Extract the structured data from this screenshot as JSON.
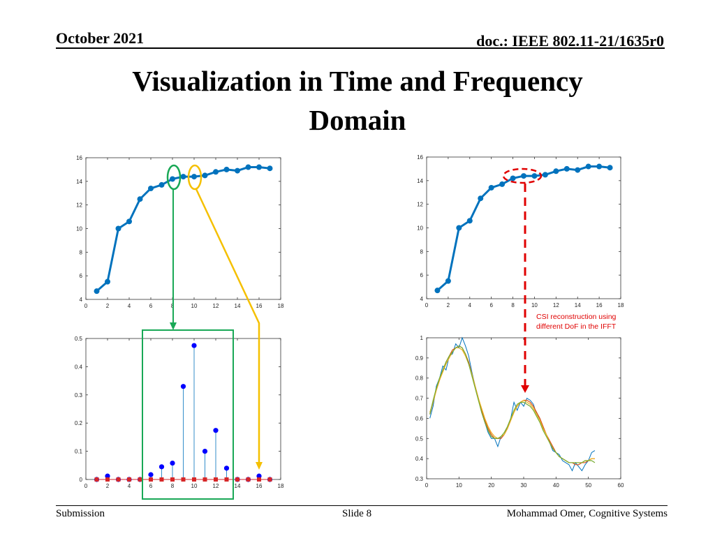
{
  "header": {
    "date": "October 2021",
    "doc": "doc.: IEEE 802.11-21/1635r0"
  },
  "title": {
    "line1": "Visualization in Time and Frequency",
    "line2": "Domain"
  },
  "annotation": {
    "line1": "CSI reconstruction using",
    "line2": "different DoF in the IFFT"
  },
  "footer": {
    "left": "Submission",
    "center": "Slide 8",
    "right": "Mohammad Omer, Cognitive Systems"
  },
  "colors": {
    "blue_line": "#0072BD",
    "marker_blue": "#0000FF",
    "marker_red": "#D62728",
    "green": "#19A856",
    "yellow": "#F5C000",
    "red_dash": "#E00000",
    "orange": "#D95319"
  },
  "chart_data": [
    {
      "type": "line",
      "panel": "top-left",
      "x": [
        1,
        2,
        3,
        4,
        5,
        6,
        7,
        8,
        9,
        10,
        11,
        12,
        13,
        14,
        15,
        16,
        17
      ],
      "series": [
        {
          "values": [
            4.7,
            5.5,
            10.0,
            10.6,
            12.5,
            13.4,
            13.7,
            14.2,
            14.4,
            14.4,
            14.5,
            14.8,
            15.0,
            14.9,
            15.2,
            15.2,
            15.1
          ]
        }
      ],
      "xlim": [
        0,
        18
      ],
      "ylim": [
        4,
        16
      ],
      "xticks": [
        0,
        2,
        4,
        6,
        8,
        10,
        12,
        14,
        16,
        18
      ],
      "yticks": [
        4,
        6,
        8,
        10,
        12,
        14,
        16
      ]
    },
    {
      "type": "line",
      "panel": "top-right",
      "x": [
        1,
        2,
        3,
        4,
        5,
        6,
        7,
        8,
        9,
        10,
        11,
        12,
        13,
        14,
        15,
        16,
        17
      ],
      "series": [
        {
          "values": [
            4.7,
            5.5,
            10.0,
            10.6,
            12.5,
            13.4,
            13.7,
            14.2,
            14.4,
            14.4,
            14.5,
            14.8,
            15.0,
            14.9,
            15.2,
            15.2,
            15.1
          ]
        }
      ],
      "xlim": [
        0,
        18
      ],
      "ylim": [
        4,
        16
      ],
      "xticks": [
        0,
        2,
        4,
        6,
        8,
        10,
        12,
        14,
        16,
        18
      ],
      "yticks": [
        4,
        6,
        8,
        10,
        12,
        14,
        16
      ]
    },
    {
      "type": "scatter",
      "panel": "bottom-left",
      "x": [
        1,
        2,
        3,
        4,
        5,
        6,
        7,
        8,
        9,
        10,
        11,
        12,
        13,
        14,
        15,
        16,
        17
      ],
      "series": [
        {
          "values": [
            0.0,
            0.012,
            0.0,
            0.0,
            0.0,
            0.017,
            0.045,
            0.058,
            0.33,
            0.475,
            0.1,
            0.174,
            0.04,
            0.0,
            0.0,
            0.012,
            0.0
          ]
        },
        {
          "values": [
            0,
            0,
            0,
            0,
            0,
            0,
            0,
            0,
            0,
            0,
            0,
            0,
            0,
            0,
            0,
            0,
            0
          ]
        }
      ],
      "xlim": [
        0,
        18
      ],
      "ylim": [
        0,
        0.5
      ],
      "xticks": [
        0,
        2,
        4,
        6,
        8,
        10,
        12,
        14,
        16,
        18
      ],
      "yticks": [
        0,
        0.1,
        0.2,
        0.3,
        0.4,
        0.5
      ]
    },
    {
      "type": "line",
      "panel": "bottom-right",
      "x": [
        1,
        2,
        3,
        4,
        5,
        6,
        7,
        8,
        9,
        10,
        11,
        12,
        13,
        14,
        15,
        16,
        17,
        18,
        19,
        20,
        21,
        22,
        23,
        24,
        25,
        26,
        27,
        28,
        29,
        30,
        31,
        32,
        33,
        34,
        35,
        36,
        37,
        38,
        39,
        40,
        41,
        42,
        43,
        44,
        45,
        46,
        47,
        48,
        49,
        50,
        51,
        52
      ],
      "series": [
        {
          "values": [
            0.6,
            0.66,
            0.76,
            0.8,
            0.86,
            0.84,
            0.91,
            0.92,
            0.97,
            0.95,
            1.0,
            0.96,
            0.91,
            0.83,
            0.76,
            0.7,
            0.63,
            0.58,
            0.53,
            0.5,
            0.5,
            0.46,
            0.51,
            0.52,
            0.56,
            0.6,
            0.68,
            0.64,
            0.68,
            0.66,
            0.7,
            0.69,
            0.67,
            0.62,
            0.6,
            0.55,
            0.52,
            0.48,
            0.44,
            0.43,
            0.42,
            0.39,
            0.38,
            0.37,
            0.34,
            0.38,
            0.36,
            0.34,
            0.37,
            0.39,
            0.43,
            0.44
          ]
        },
        {
          "values": [
            0.62,
            0.68,
            0.74,
            0.79,
            0.84,
            0.88,
            0.91,
            0.94,
            0.95,
            0.96,
            0.95,
            0.92,
            0.88,
            0.82,
            0.76,
            0.7,
            0.64,
            0.59,
            0.55,
            0.52,
            0.5,
            0.5,
            0.5,
            0.52,
            0.55,
            0.59,
            0.63,
            0.66,
            0.68,
            0.69,
            0.69,
            0.68,
            0.66,
            0.63,
            0.6,
            0.56,
            0.52,
            0.49,
            0.46,
            0.43,
            0.41,
            0.4,
            0.39,
            0.38,
            0.38,
            0.37,
            0.37,
            0.38,
            0.38,
            0.39,
            0.4,
            0.4
          ]
        },
        {
          "values": [
            0.63,
            0.68,
            0.74,
            0.79,
            0.83,
            0.87,
            0.9,
            0.93,
            0.95,
            0.95,
            0.94,
            0.91,
            0.87,
            0.82,
            0.76,
            0.7,
            0.65,
            0.6,
            0.56,
            0.53,
            0.51,
            0.5,
            0.51,
            0.52,
            0.55,
            0.59,
            0.63,
            0.66,
            0.68,
            0.69,
            0.68,
            0.67,
            0.65,
            0.62,
            0.59,
            0.55,
            0.52,
            0.48,
            0.45,
            0.43,
            0.41,
            0.4,
            0.39,
            0.38,
            0.38,
            0.38,
            0.38,
            0.38,
            0.39,
            0.39,
            0.4,
            0.4
          ]
        },
        {
          "values": [
            0.62,
            0.69,
            0.75,
            0.8,
            0.84,
            0.88,
            0.91,
            0.93,
            0.95,
            0.96,
            0.95,
            0.92,
            0.87,
            0.81,
            0.75,
            0.69,
            0.63,
            0.58,
            0.54,
            0.51,
            0.5,
            0.5,
            0.51,
            0.53,
            0.56,
            0.6,
            0.64,
            0.67,
            0.68,
            0.68,
            0.67,
            0.66,
            0.64,
            0.61,
            0.58,
            0.54,
            0.51,
            0.48,
            0.45,
            0.43,
            0.41,
            0.4,
            0.39,
            0.38,
            0.38,
            0.38,
            0.38,
            0.38,
            0.39,
            0.39,
            0.39,
            0.38
          ]
        }
      ],
      "xlim": [
        0,
        60
      ],
      "ylim": [
        0.3,
        1
      ],
      "xticks": [
        0,
        10,
        20,
        30,
        40,
        50,
        60
      ],
      "yticks": [
        0.3,
        0.4,
        0.5,
        0.6,
        0.7,
        0.8,
        0.9,
        1
      ]
    }
  ]
}
